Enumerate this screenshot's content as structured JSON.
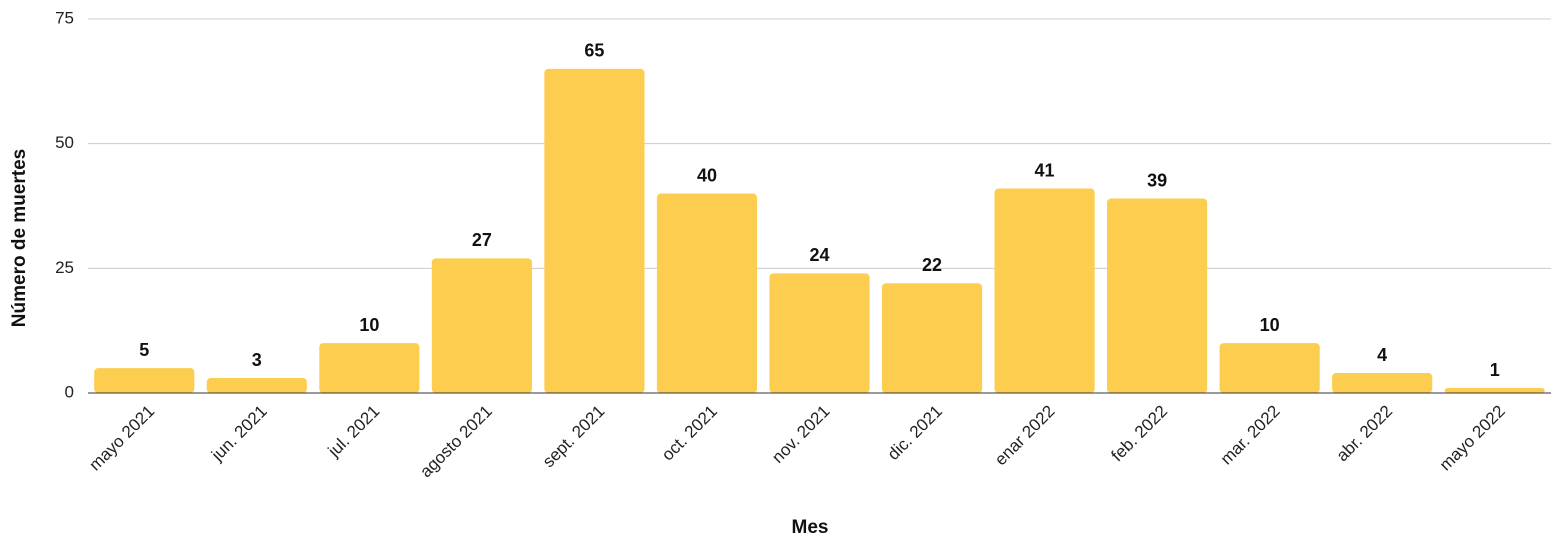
{
  "chart_data": {
    "type": "bar",
    "x_label": "Mes",
    "y_label": "Número de muertes",
    "categories": [
      "mayo 2021",
      "jun. 2021",
      "jul. 2021",
      "agosto 2021",
      "sept. 2021",
      "oct. 2021",
      "nov. 2021",
      "dic. 2021",
      "enar 2022",
      "feb. 2022",
      "mar. 2022",
      "abr. 2022",
      "mayo 2022"
    ],
    "values": [
      5,
      3,
      10,
      27,
      65,
      40,
      24,
      22,
      41,
      39,
      10,
      4,
      1
    ],
    "color": "#fdcd50",
    "ylim": [
      0,
      75
    ],
    "yticks": [
      0,
      25,
      50,
      75
    ],
    "grid": true
  }
}
